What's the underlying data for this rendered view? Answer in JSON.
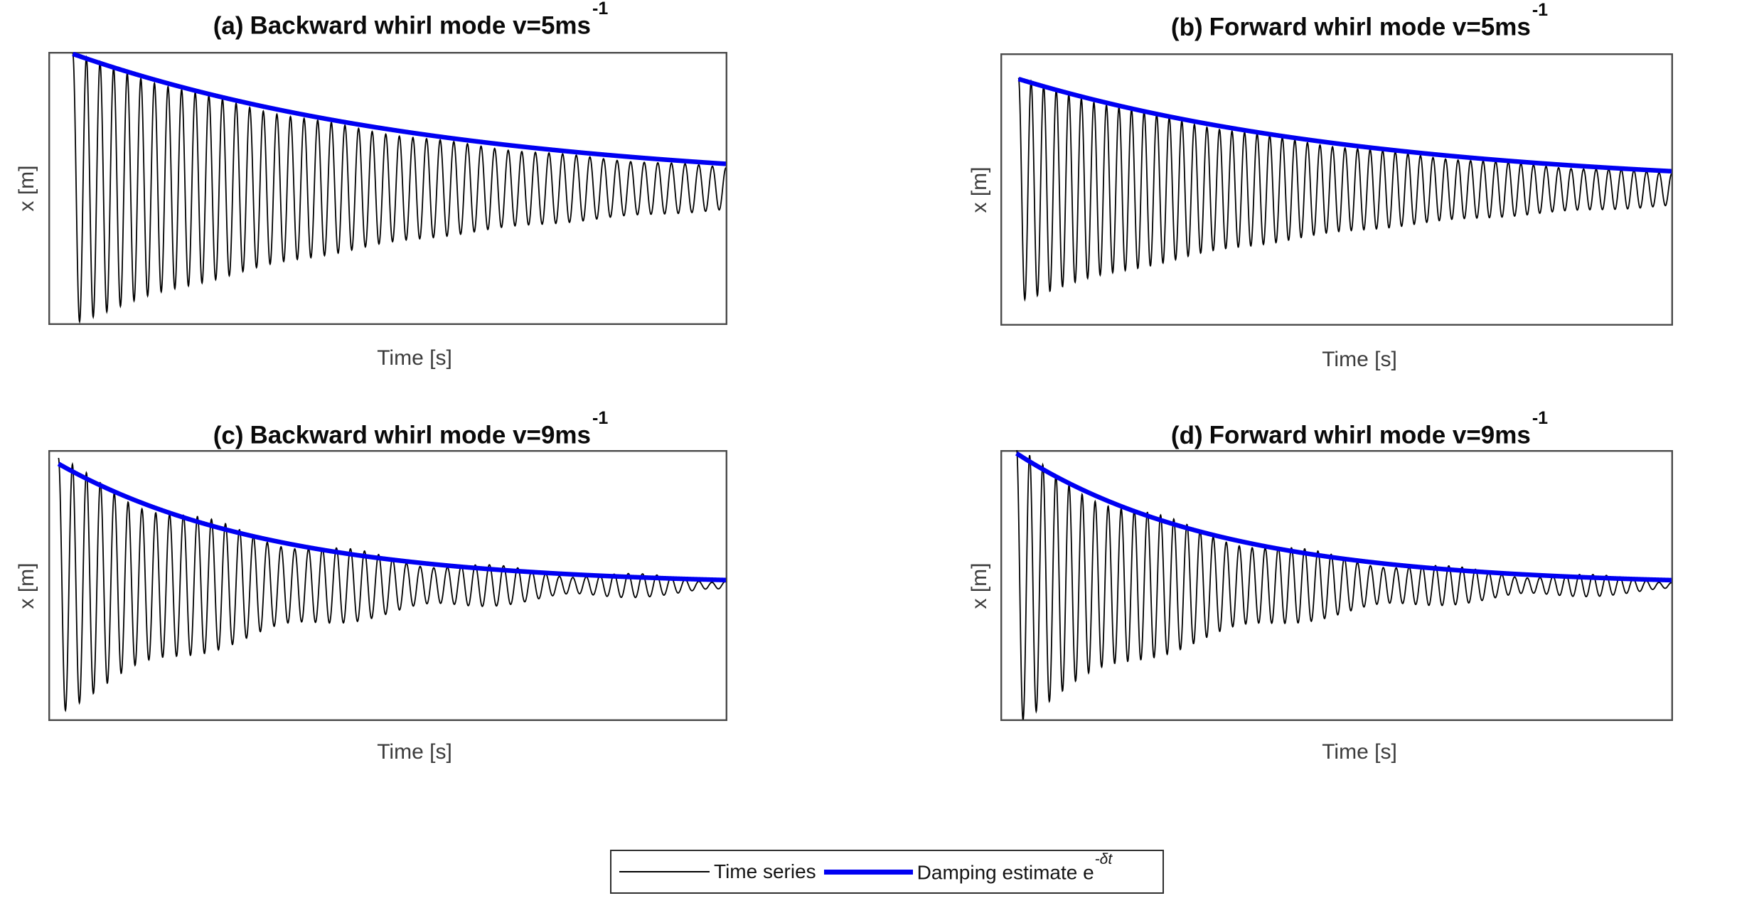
{
  "figure": {
    "background": "#ffffff",
    "description": "2x2 grid of damped vibration time series with exponential damping-estimate envelopes"
  },
  "colors": {
    "time_series": "#000000",
    "damping_envelope": "#0000f2",
    "axes_frame": "#4b4b4b",
    "axis_label_text": "#3c3c3c",
    "title_text": "#0a0a0a"
  },
  "legend": {
    "position": "bottom-center-outside",
    "items": [
      {
        "label": "Time series",
        "line_weight": "thin",
        "color": "#000000"
      },
      {
        "label": "Damping estimate e",
        "label_sup": "-δt",
        "line_weight": "thick",
        "color": "#0000f2"
      }
    ]
  },
  "chart_data": [
    {
      "type": "line",
      "panel": "a",
      "title": {
        "prefix": "(a)",
        "main": "Backward whirl mode v=5ms",
        "sup": "-1"
      },
      "xlabel": "Time [s]",
      "ylabel": "x [m]",
      "x_ticks": [],
      "y_ticks": [],
      "ylim": [
        -1.035,
        1.035
      ],
      "x_start_frac": 0.036,
      "series": [
        {
          "name": "Time series",
          "role": "signal",
          "start_amplitude": 1.02,
          "decay_ln_total": 1.85,
          "cycles": 48,
          "phase": 0,
          "residual": {
            "amplitude": 0.012,
            "decay_ln_total": 0.6,
            "cycles": 42.5,
            "phase": 1.1
          }
        },
        {
          "name": "Damping estimate e^-δt",
          "role": "envelope",
          "start_amplitude": 1.02,
          "decay_ln_total": 1.7
        }
      ]
    },
    {
      "type": "line",
      "panel": "b",
      "title": {
        "prefix": "(b)",
        "main": "Forward whirl mode v=5ms",
        "sup": "-1"
      },
      "xlabel": "Time [s]",
      "ylabel": "x [m]",
      "x_ticks": [],
      "y_ticks": [],
      "ylim": [
        -1.035,
        1.035
      ],
      "x_start_frac": 0.027,
      "series": [
        {
          "name": "Time series",
          "role": "signal",
          "start_amplitude": 0.84,
          "decay_ln_total": 1.92,
          "cycles": 52,
          "phase": 0,
          "residual": {
            "amplitude": 0.012,
            "decay_ln_total": 0.6,
            "cycles": 46.5,
            "phase": 0.8
          }
        },
        {
          "name": "Damping estimate e^-δt",
          "role": "envelope",
          "start_amplitude": 0.84,
          "decay_ln_total": 1.8
        }
      ]
    },
    {
      "type": "line",
      "panel": "c",
      "title": {
        "prefix": "(c)",
        "main": "Backward whirl mode v=9ms",
        "sup": "-1"
      },
      "xlabel": "Time [s]",
      "ylabel": "x [m]",
      "x_ticks": [],
      "y_ticks": [],
      "ylim": [
        -1.035,
        1.035
      ],
      "x_start_frac": 0.015,
      "series": [
        {
          "name": "Time series",
          "role": "signal",
          "start_amplitude": 0.93,
          "decay_ln_total": 3.05,
          "cycles": 48,
          "phase": 0,
          "residual": {
            "amplitude": 0.055,
            "decay_ln_total": 0.9,
            "cycles": 43.3,
            "phase": 0.6
          }
        },
        {
          "name": "Damping estimate e^-δt",
          "role": "envelope",
          "start_amplitude": 0.93,
          "decay_ln_total": 3.1
        }
      ]
    },
    {
      "type": "line",
      "panel": "d",
      "title": {
        "prefix": "(d)",
        "main": "Forward whirl mode v=9ms",
        "sup": "-1"
      },
      "xlabel": "Time [s]",
      "ylabel": "x [m]",
      "x_ticks": [],
      "y_ticks": [],
      "ylim": [
        -1.035,
        1.035
      ],
      "x_start_frac": 0.024,
      "series": [
        {
          "name": "Time series",
          "role": "signal",
          "start_amplitude": 1.01,
          "decay_ln_total": 3.2,
          "cycles": 50,
          "phase": 0,
          "residual": {
            "amplitude": 0.05,
            "decay_ln_total": 0.85,
            "cycles": 45.4,
            "phase": 0.4
          }
        },
        {
          "name": "Damping estimate e^-δt",
          "role": "envelope",
          "start_amplitude": 1.01,
          "decay_ln_total": 3.2
        }
      ]
    }
  ]
}
